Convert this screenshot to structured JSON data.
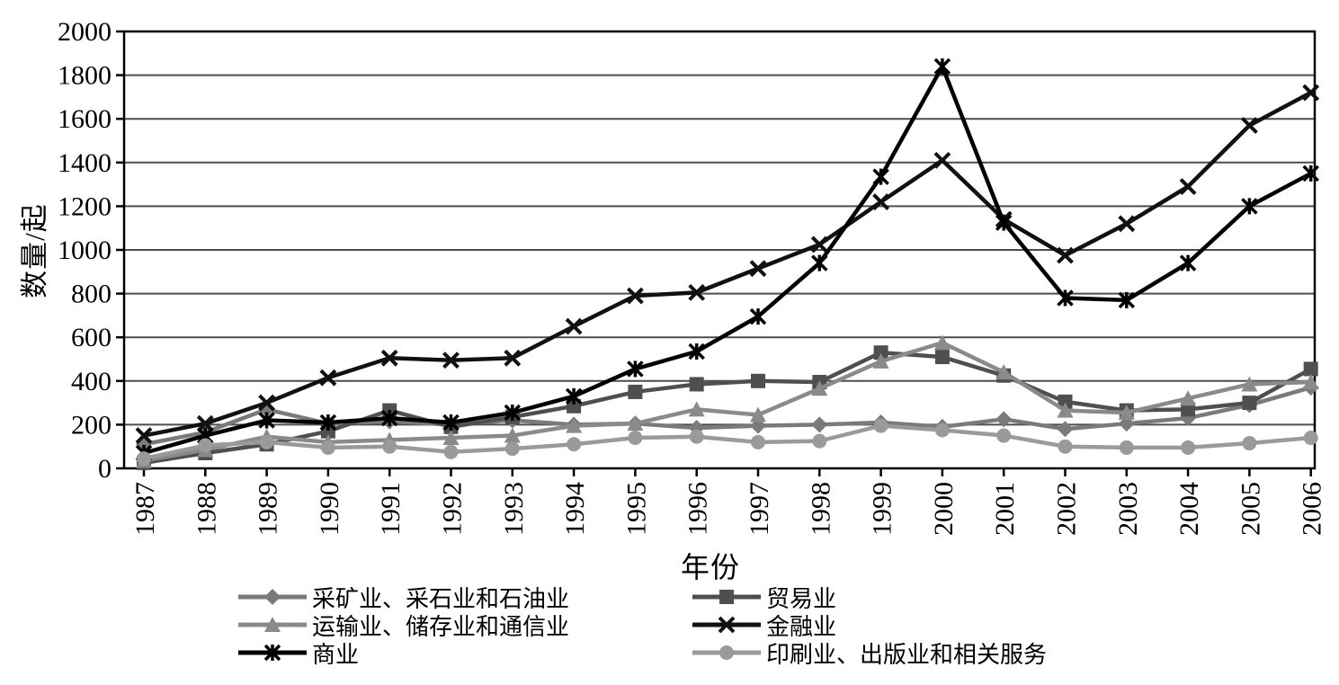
{
  "chart_data": {
    "type": "line",
    "title": "",
    "xlabel": "年份",
    "ylabel": "数量/起",
    "ylim": [
      0,
      2000
    ],
    "ytick_step": 200,
    "yticks": [
      "0",
      "200",
      "400",
      "600",
      "800",
      "1000",
      "1200",
      "1400",
      "1600",
      "1800",
      "2000"
    ],
    "x": [
      "1987",
      "1988",
      "1989",
      "1990",
      "1991",
      "1992",
      "1993",
      "1994",
      "1995",
      "1996",
      "1997",
      "1998",
      "1999",
      "2000",
      "2001",
      "2002",
      "2003",
      "2004",
      "2005",
      "2006"
    ],
    "grid": "horizontal",
    "grid_color": "#4d4d4d",
    "frame_color": "#000000",
    "legend_position": "bottom-two-columns",
    "series": [
      {
        "name": "采矿业、采石业和石油业",
        "marker": "diamond",
        "color": "#7a7a7a",
        "values": [
          110,
          165,
          270,
          205,
          215,
          200,
          220,
          200,
          205,
          185,
          195,
          200,
          210,
          190,
          225,
          180,
          205,
          230,
          290,
          370
        ]
      },
      {
        "name": "贸易业",
        "marker": "square",
        "color": "#4f4f4f",
        "values": [
          25,
          70,
          110,
          170,
          265,
          190,
          235,
          285,
          350,
          385,
          400,
          395,
          530,
          510,
          425,
          305,
          265,
          270,
          300,
          455
        ]
      },
      {
        "name": "运输业、储存业和通信业",
        "marker": "triangle",
        "color": "#8a8a8a",
        "values": [
          35,
          85,
          145,
          120,
          130,
          140,
          150,
          195,
          205,
          270,
          245,
          365,
          490,
          575,
          440,
          265,
          255,
          320,
          385,
          395
        ]
      },
      {
        "name": "金融业",
        "marker": "x",
        "color": "#111111",
        "values": [
          150,
          205,
          300,
          415,
          505,
          495,
          505,
          650,
          790,
          805,
          915,
          1025,
          1220,
          1410,
          1140,
          975,
          1120,
          1290,
          1570,
          1720
        ]
      },
      {
        "name": "商业",
        "marker": "asterisk",
        "color": "#000000",
        "values": [
          70,
          150,
          220,
          210,
          230,
          210,
          255,
          330,
          455,
          535,
          695,
          940,
          1335,
          1840,
          1125,
          780,
          770,
          940,
          1200,
          1350
        ]
      },
      {
        "name": "印刷业、出版业和相关服务",
        "marker": "circle",
        "color": "#9a9a9a",
        "values": [
          45,
          105,
          120,
          95,
          100,
          75,
          90,
          110,
          140,
          145,
          120,
          125,
          195,
          175,
          150,
          100,
          95,
          95,
          115,
          140
        ]
      }
    ]
  }
}
